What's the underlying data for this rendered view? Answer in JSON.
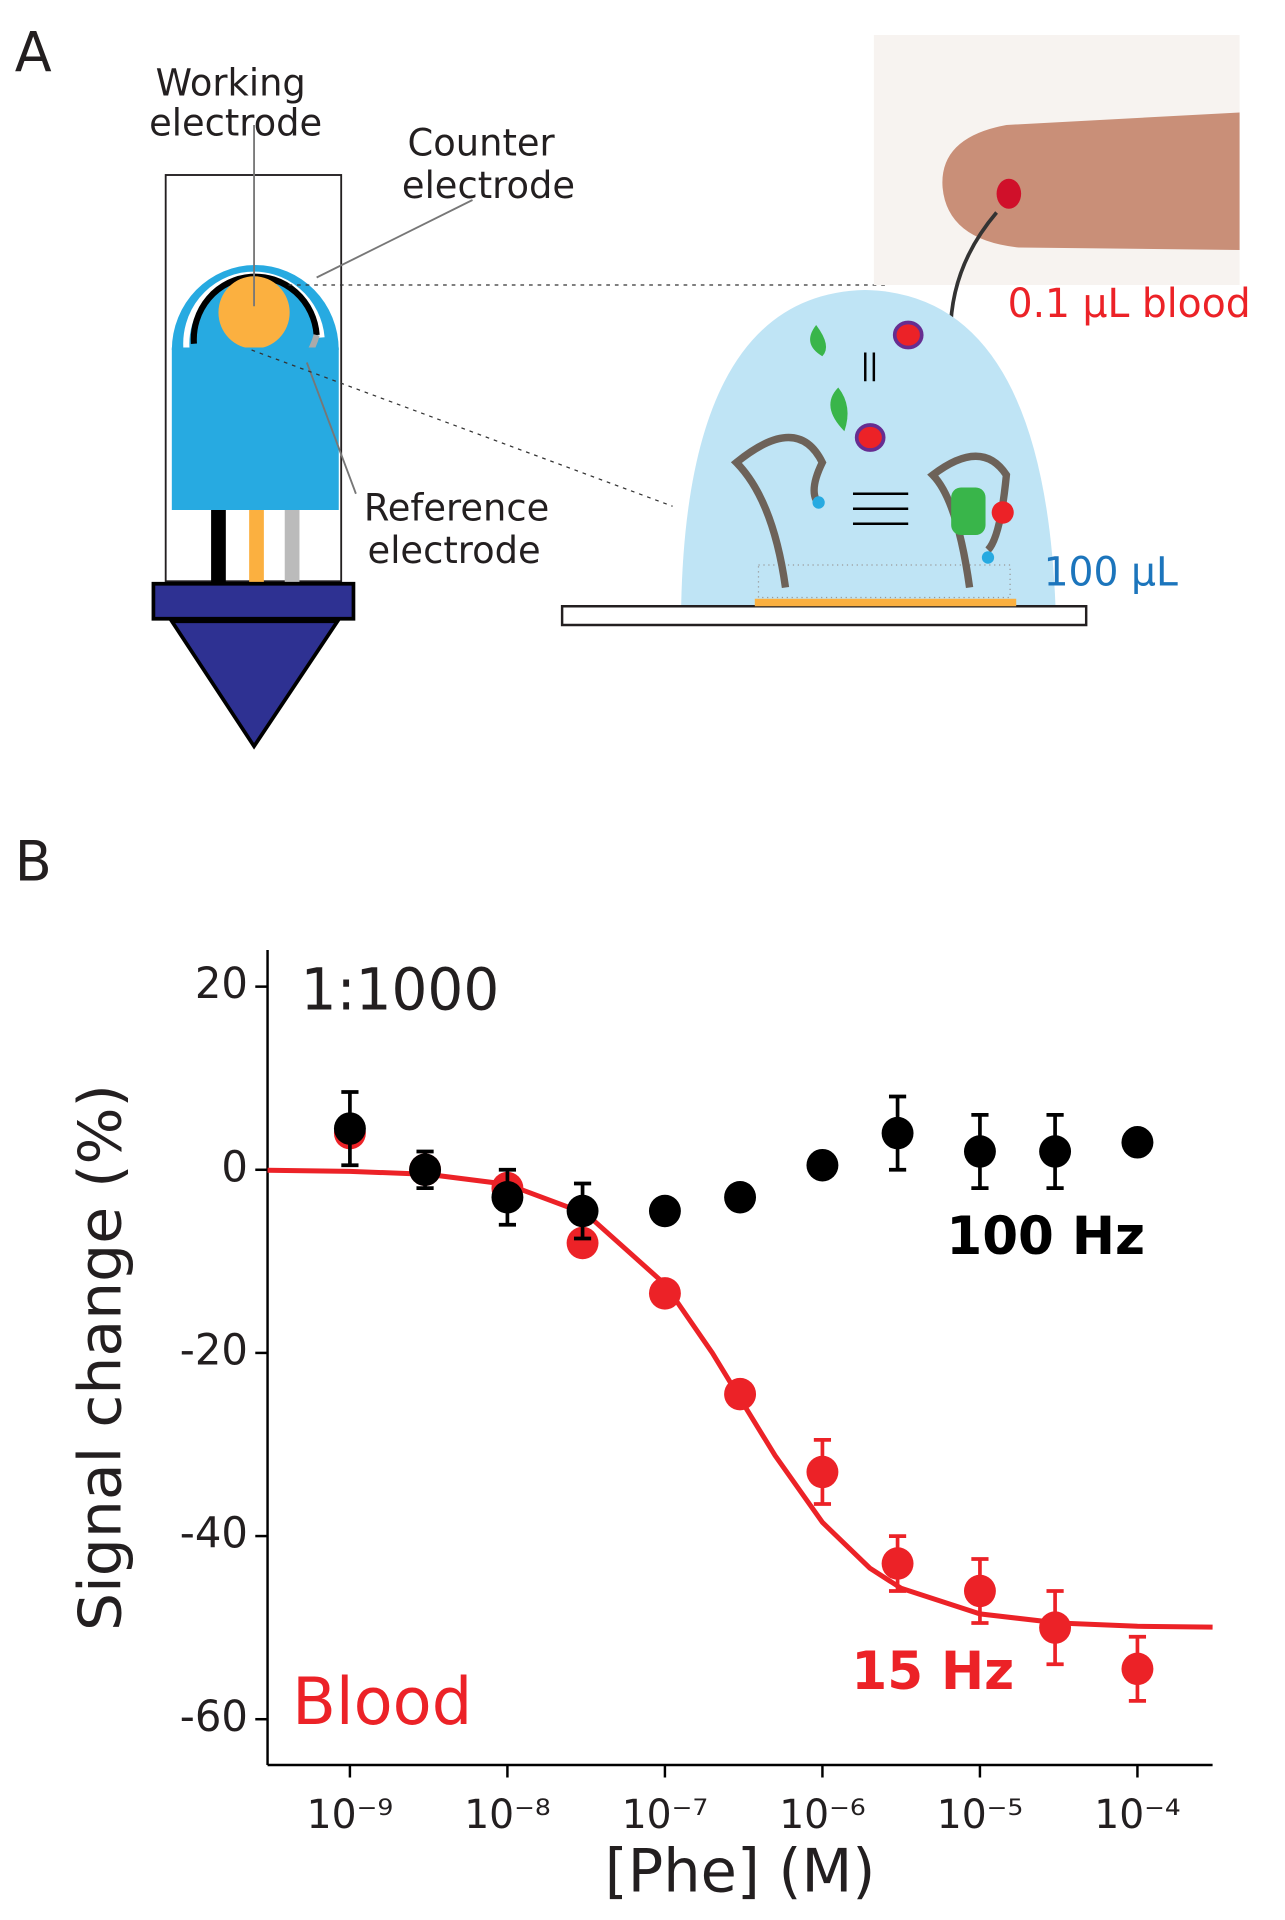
{
  "panel_a": {
    "label": "A",
    "working_electrode": [
      "Working",
      "electrode"
    ],
    "counter_electrode": [
      "Counter",
      "electrode"
    ],
    "reference_electrode": [
      "Reference",
      "electrode"
    ],
    "blood_volume": "0.1 μL blood",
    "sample_volume": "100 μL"
  },
  "panel_b": {
    "label": "B"
  },
  "chart_data": {
    "type": "scatter",
    "x_label": "[Phe] (M)",
    "y_label": "Signal change (%)",
    "annotations": [
      "1:1000",
      "Blood"
    ],
    "log_x": true,
    "xlim": [
      3e-10,
      0.0003
    ],
    "ylim": [
      -65,
      24
    ],
    "xticks": [
      {
        "value": 1e-09,
        "label": "10⁻⁹"
      },
      {
        "value": 1e-08,
        "label": "10⁻⁸"
      },
      {
        "value": 1e-07,
        "label": "10⁻⁷"
      },
      {
        "value": 1e-06,
        "label": "10⁻⁶"
      },
      {
        "value": 1e-05,
        "label": "10⁻⁵"
      },
      {
        "value": 0.0001,
        "label": "10⁻⁴"
      }
    ],
    "yticks": [
      20,
      0,
      -20,
      -40,
      -60
    ],
    "x": [
      1e-09,
      3e-09,
      1e-08,
      3e-08,
      1e-07,
      3e-07,
      1e-06,
      3e-06,
      1e-05,
      3e-05,
      0.0001
    ],
    "series": [
      {
        "name": "15 Hz",
        "color": "#ec2227",
        "values": [
          4,
          0,
          -2,
          -8,
          -13.5,
          -24.5,
          -33,
          -43,
          -46,
          -50,
          -54.5
        ],
        "errors": [
          0,
          0,
          0,
          0,
          0,
          0,
          3.5,
          3,
          3.5,
          4,
          3.5
        ]
      },
      {
        "name": "100 Hz",
        "color": "#000000",
        "values": [
          4.5,
          0,
          -3,
          -4.5,
          -4.5,
          -3,
          0.5,
          4,
          2,
          2,
          3
        ],
        "errors": [
          4,
          2,
          3,
          3,
          0,
          0,
          0,
          4,
          4,
          4,
          0
        ]
      }
    ],
    "fit": {
      "color": "#ec2227",
      "x": [
        3e-10,
        1e-09,
        3.16e-09,
        1e-08,
        3.16e-08,
        1e-07,
        2e-07,
        3.16e-07,
        5e-07,
        1e-06,
        2e-06,
        3.16e-06,
        1e-05,
        3.16e-05,
        0.0001,
        0.0003
      ],
      "values": [
        -0.05,
        -0.17,
        -0.5,
        -1.6,
        -4.8,
        -12.5,
        -20,
        -25.6,
        -31.2,
        -38.5,
        -43.5,
        -45.7,
        -48.5,
        -49.5,
        -49.85,
        -49.95
      ]
    }
  }
}
